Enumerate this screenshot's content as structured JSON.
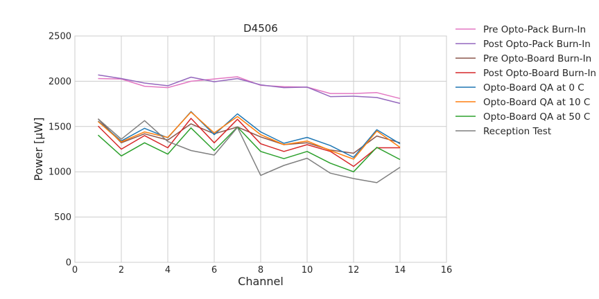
{
  "chart_data": {
    "type": "line",
    "title": "D4506",
    "xlabel": "Channel",
    "ylabel": "Power [μW]",
    "xlim": [
      0,
      16
    ],
    "ylim": [
      0,
      2500
    ],
    "xticks": [
      0,
      2,
      4,
      6,
      8,
      10,
      12,
      14,
      16
    ],
    "yticks": [
      0,
      500,
      1000,
      1500,
      2000,
      2500
    ],
    "grid": true,
    "legend_position": "outside-right",
    "x": [
      1,
      2,
      3,
      4,
      5,
      6,
      7,
      8,
      9,
      10,
      11,
      12,
      13,
      14
    ],
    "series": [
      {
        "name": "Pre Opto-Pack Burn-In",
        "color": "#e377c2",
        "values": [
          2030,
          2025,
          1945,
          1930,
          2000,
          2025,
          2050,
          1955,
          1940,
          1935,
          1865,
          1865,
          1875,
          1810
        ]
      },
      {
        "name": "Post Opto-Pack Burn-In",
        "color": "#9467bd",
        "values": [
          2070,
          2030,
          1980,
          1950,
          2045,
          1995,
          2030,
          1960,
          1930,
          1935,
          1830,
          1835,
          1820,
          1755
        ]
      },
      {
        "name": "Pre Opto-Board Burn-In",
        "color": "#8c564b",
        "values": [
          1585,
          1320,
          1420,
          1350,
          1530,
          1420,
          1495,
          1385,
          1300,
          1320,
          1240,
          1205,
          1395,
          1320
        ]
      },
      {
        "name": "Post Opto-Board Burn-In",
        "color": "#d62728",
        "values": [
          1505,
          1250,
          1400,
          1265,
          1590,
          1320,
          1580,
          1310,
          1225,
          1300,
          1225,
          1060,
          1265,
          1265
        ]
      },
      {
        "name": "Opto-Board QA at 0 C",
        "color": "#1f77b4",
        "values": [
          1560,
          1340,
          1480,
          1375,
          1665,
          1410,
          1640,
          1440,
          1315,
          1380,
          1290,
          1160,
          1465,
          1310
        ]
      },
      {
        "name": "Opto-Board QA at 10 C",
        "color": "#ff7f0e",
        "values": [
          1555,
          1330,
          1440,
          1380,
          1660,
          1430,
          1610,
          1410,
          1300,
          1340,
          1235,
          1140,
          1450,
          1270
        ]
      },
      {
        "name": "Opto-Board QA at 50 C",
        "color": "#2ca02c",
        "values": [
          1405,
          1175,
          1320,
          1195,
          1485,
          1235,
          1495,
          1225,
          1145,
          1225,
          1095,
          1000,
          1270,
          1135
        ]
      },
      {
        "name": "Reception Test",
        "color": "#7f7f7f",
        "values": [
          1585,
          1360,
          1565,
          1335,
          1235,
          1185,
          1490,
          960,
          1070,
          1150,
          985,
          925,
          880,
          1050
        ]
      }
    ]
  }
}
